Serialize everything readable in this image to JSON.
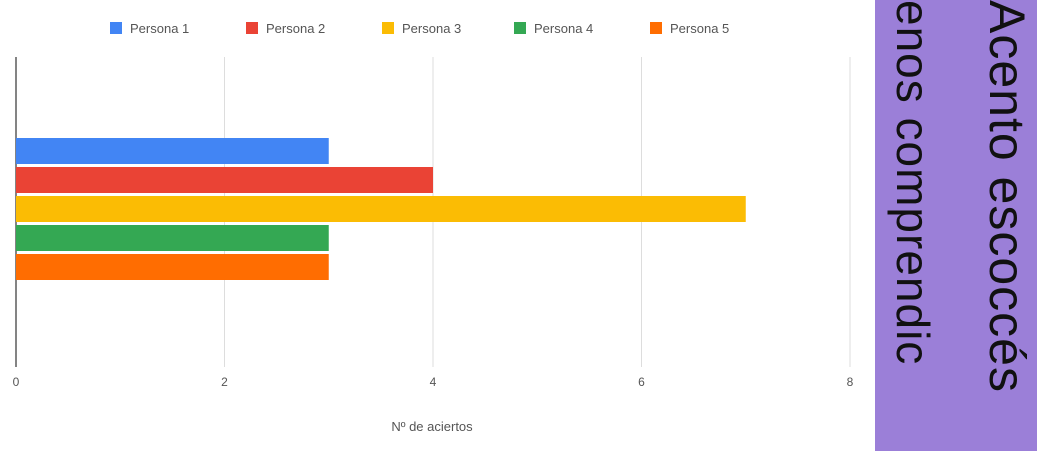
{
  "chart_data": {
    "type": "bar",
    "orientation": "horizontal",
    "title": "",
    "xlabel": "Nº de aciertos",
    "ylabel": "",
    "xlim": [
      0,
      8
    ],
    "x_ticks": [
      "0",
      "2",
      "4",
      "6",
      "8"
    ],
    "grid": true,
    "legend_position": "top",
    "series": [
      {
        "name": "Persona 1",
        "values": [
          3
        ],
        "color": "#4285f4"
      },
      {
        "name": "Persona 2",
        "values": [
          4
        ],
        "color": "#ea4335"
      },
      {
        "name": "Persona 3",
        "values": [
          7
        ],
        "color": "#fbbc04"
      },
      {
        "name": "Persona 4",
        "values": [
          3
        ],
        "color": "#34a853"
      },
      {
        "name": "Persona 5",
        "values": [
          3
        ],
        "color": "#ff6d01"
      }
    ]
  },
  "side_panel": {
    "line1": "Acento escoccés",
    "line2": "enos comprendic",
    "background": "#9b7fd8"
  }
}
